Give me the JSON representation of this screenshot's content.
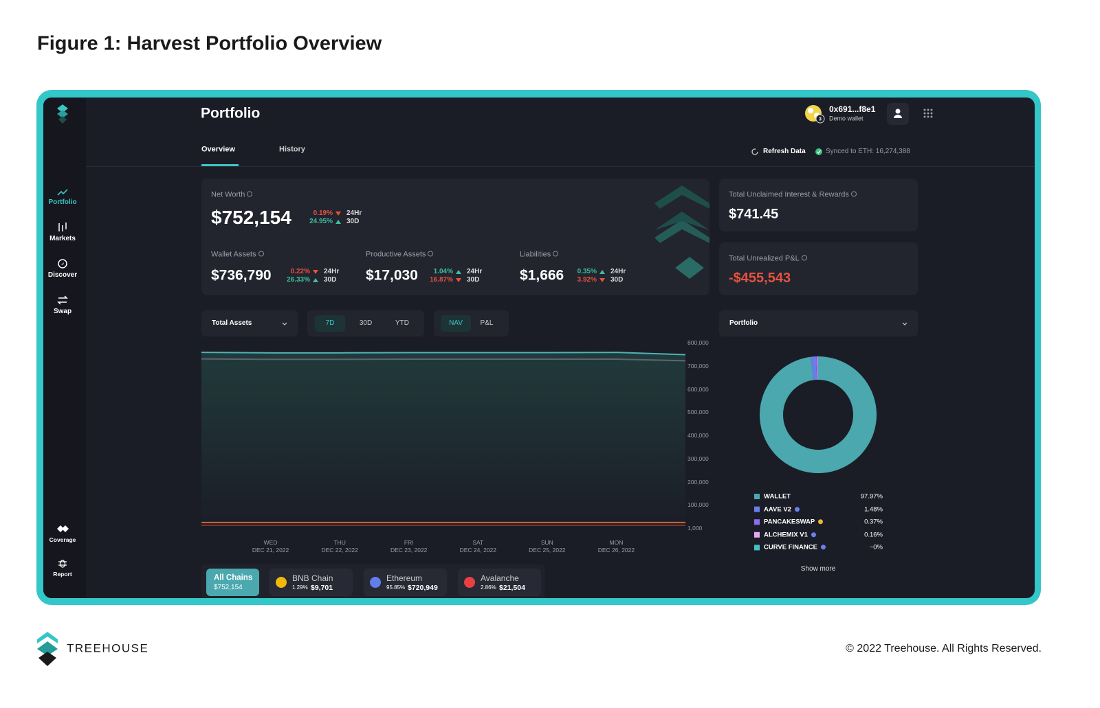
{
  "figure_title": "Figure 1: Harvest Portfolio Overview",
  "sidebar": {
    "nav": [
      "Portfolio",
      "Markets",
      "Discover",
      "Swap"
    ],
    "bottom": [
      "Coverage",
      "Report"
    ]
  },
  "header": {
    "title": "Portfolio",
    "wallet": "0x691...f8e1",
    "wallet_sub": "Demo wallet",
    "badge": "3"
  },
  "tabs": [
    "Overview",
    "History"
  ],
  "sync": {
    "refresh": "Refresh Data",
    "synced": "Synced to ETH: 16,274,388"
  },
  "net_worth": {
    "label": "Net Worth",
    "value": "$752,154",
    "changes": [
      {
        "pct": "0.19%",
        "period": "24Hr",
        "dir": "down"
      },
      {
        "pct": "24.95%",
        "period": "30D",
        "dir": "up"
      }
    ]
  },
  "metrics": [
    {
      "label": "Wallet Assets",
      "value": "$736,790",
      "changes": [
        {
          "pct": "0.22%",
          "period": "24Hr",
          "dir": "down"
        },
        {
          "pct": "26.33%",
          "period": "30D",
          "dir": "up"
        }
      ]
    },
    {
      "label": "Productive Assets",
      "value": "$17,030",
      "changes": [
        {
          "pct": "1.04%",
          "period": "24Hr",
          "dir": "up"
        },
        {
          "pct": "16.87%",
          "period": "30D",
          "dir": "down"
        }
      ]
    },
    {
      "label": "Liabilities",
      "value": "$1,666",
      "changes": [
        {
          "pct": "0.35%",
          "period": "24Hr",
          "dir": "up"
        },
        {
          "pct": "3.92%",
          "period": "30D",
          "dir": "down"
        }
      ]
    }
  ],
  "side_cards": [
    {
      "label": "Total Unclaimed Interest & Rewards",
      "value": "$741.45"
    },
    {
      "label": "Total Unrealized P&L",
      "value": "-$455,543"
    }
  ],
  "controls": {
    "asset_select": "Total Assets",
    "ranges": [
      "7D",
      "30D",
      "YTD"
    ],
    "modes": [
      "NAV",
      "P&L"
    ],
    "breakdown_select": "Portfolio"
  },
  "chains": [
    {
      "name": "All Chains",
      "value": "$752,154"
    },
    {
      "name": "BNB Chain",
      "pct": "1.29%",
      "value": "$9,701"
    },
    {
      "name": "Ethereum",
      "pct": "95.85%",
      "value": "$720,949"
    },
    {
      "name": "Avalanche",
      "pct": "2.86%",
      "value": "$21,504"
    }
  ],
  "chart_data": [
    {
      "type": "area",
      "categories": [
        null,
        "DEC 21, 2022",
        "DEC 22, 2022",
        "DEC 23, 2022",
        "DEC 24, 2022",
        "DEC 25, 2022",
        "DEC 26, 2022",
        null
      ],
      "weekdays": [
        null,
        "WED",
        "THU",
        "FRI",
        "SAT",
        "SUN",
        "MON",
        null
      ],
      "series": [
        {
          "color": "#4fb3b6",
          "values": [
            758000,
            756000,
            756000,
            757000,
            757000,
            757000,
            758000,
            748000
          ]
        },
        {
          "color": "#5b6673",
          "values": [
            730000,
            728000,
            728000,
            729000,
            729000,
            729000,
            729000,
            722000
          ]
        },
        {
          "color": "#c8663a",
          "values": [
            24000,
            24000,
            24000,
            24000,
            24000,
            24000,
            24000,
            24000
          ]
        },
        {
          "color": "#7a3528",
          "values": [
            12000,
            12000,
            12000,
            12000,
            12000,
            12000,
            12000,
            12000
          ]
        }
      ],
      "ylim": [
        0,
        800000
      ],
      "yticks": [
        {
          "value": 1000,
          "label": "1,000"
        },
        {
          "value": 100000,
          "label": "100,000"
        },
        {
          "value": 200000,
          "label": "200,000"
        },
        {
          "value": 300000,
          "label": "300,000"
        },
        {
          "value": 400000,
          "label": "400,000"
        },
        {
          "value": 500000,
          "label": "500,000"
        },
        {
          "value": 600000,
          "label": "600,000"
        },
        {
          "value": 700000,
          "label": "700,000"
        },
        {
          "value": 800000,
          "label": "800,000"
        }
      ],
      "grid": false
    },
    {
      "type": "pie",
      "categories": [
        "WALLET",
        "AAVE V2",
        "PANCAKESWAP",
        "ALCHEMIX V1",
        "CURVE FINANCE"
      ],
      "values": [
        97.97,
        1.48,
        0.37,
        0.16,
        0
      ],
      "value_labels": [
        "97.97%",
        "1.48%",
        "0.37%",
        "0.16%",
        "~0%"
      ],
      "colors": [
        "#4aa8ae",
        "#6a7de8",
        "#8d6cf0",
        "#e7a6f2",
        "#45c0c0"
      ],
      "more": "Show more"
    }
  ],
  "footer": {
    "brand": "TREEHOUSE",
    "copyright": "© 2022 Treehouse. All Rights Reserved."
  }
}
